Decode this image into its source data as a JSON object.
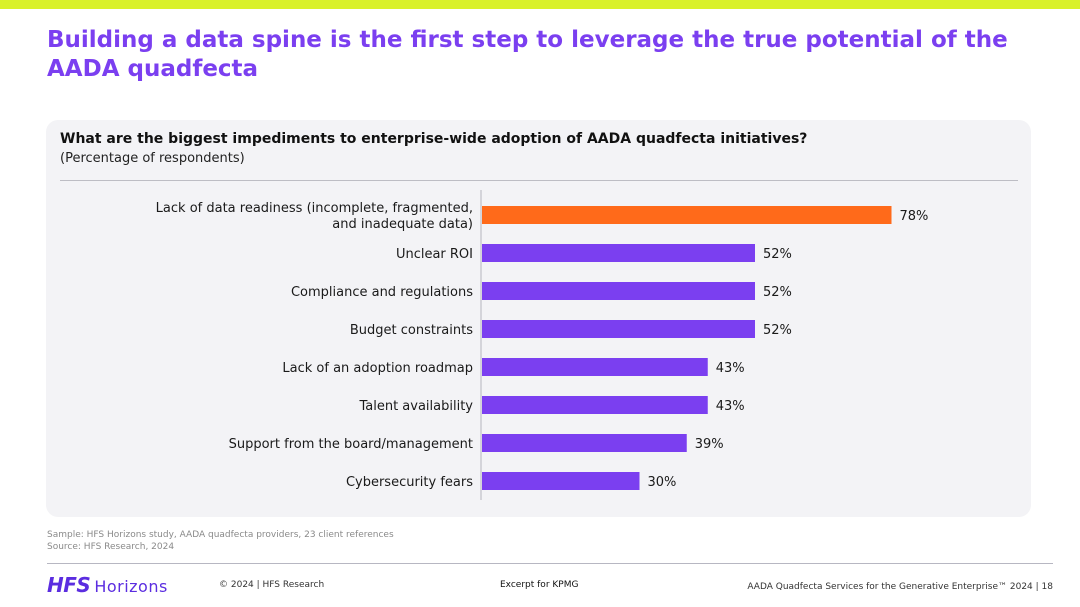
{
  "header": {
    "title": "Building a data spine is the first step to leverage the true potential of the AADA quadfecta",
    "accent_bar_color": "#d9f12a",
    "title_color": "#7b3ff0"
  },
  "card": {
    "question": "What are the biggest impediments to enterprise-wide adoption of AADA quadfecta initiatives?",
    "subtitle": "(Percentage of respondents)"
  },
  "chart_data": {
    "type": "bar",
    "orientation": "horizontal",
    "categories": [
      [
        "Lack of data readiness (incomplete, fragmented,",
        "and inadequate data)"
      ],
      [
        "Unclear ROI"
      ],
      [
        "Compliance and regulations"
      ],
      [
        "Budget constraints"
      ],
      [
        "Lack of an adoption roadmap"
      ],
      [
        "Talent availability"
      ],
      [
        "Support from the board/management"
      ],
      [
        "Cybersecurity fears"
      ]
    ],
    "values": [
      78,
      52,
      52,
      52,
      43,
      43,
      39,
      30
    ],
    "value_labels": [
      "78%",
      "52%",
      "52%",
      "52%",
      "43%",
      "43%",
      "39%",
      "30%"
    ],
    "highlight_index": 0,
    "colors": {
      "default": "#7b3ff0",
      "highlight": "#ff6a1a"
    },
    "xlim": [
      0,
      100
    ]
  },
  "notes": {
    "sample": "Sample: HFS Horizons study, AADA quadfecta providers, 23 client references",
    "source": "Source: HFS Research, 2024"
  },
  "footer": {
    "logo_primary": "HFS",
    "logo_secondary": "Horizons",
    "copyright": "© 2024 | HFS Research",
    "excerpt": "Excerpt for KPMG",
    "report": "AADA Quadfecta Services for the Generative Enterprise™ 2024 | 18"
  }
}
